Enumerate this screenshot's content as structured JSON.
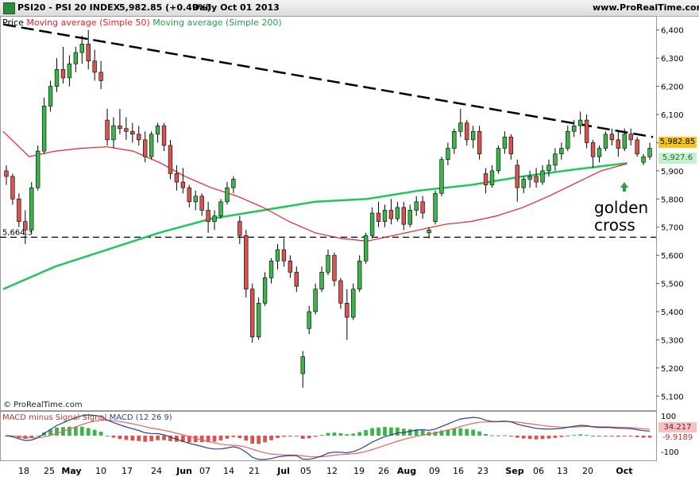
{
  "header": {
    "symbol": "PSI20 - PSI 20 INDEX",
    "last": "5,982.85 (+0.49%)",
    "period": "Daily  Oct 01 2013",
    "site": "www.ProRealTime.com"
  },
  "legend": {
    "price": "Price",
    "ma50": "Moving average (Simple 50)",
    "ma200": "Moving average (Simple 200)"
  },
  "credit": "© ProRealTime.com",
  "annotation": {
    "line1": "golden",
    "line2": "cross"
  },
  "price_tags": {
    "last": "5,982.85",
    "ma200": "5,927.6",
    "support": "5,664.3"
  },
  "macd_legend": {
    "a": "MACD minus Signal",
    "b": "Signal",
    "c": "MACD (12 26 9)"
  },
  "macd_tags": {
    "macd": "34.217",
    "hist": "-9.9189"
  },
  "colors": {
    "up": "#3bb54a",
    "down": "#d9534f",
    "ma50": "#e8232a",
    "ma200": "#22c55e",
    "trend": "#000000",
    "tag_last": "#f5c518",
    "tag_ma200": "#c6f0cf"
  },
  "chart_data": {
    "type": "candlestick",
    "y_ticks": [
      "6,400",
      "6,300",
      "6,200",
      "6,100",
      "6,000",
      "5,900",
      "5,800",
      "5,700",
      "5,600",
      "5,500",
      "5,400",
      "5,300",
      "5,200",
      "5,100"
    ],
    "ylim": [
      5050,
      6450
    ],
    "x_labels": [
      "18",
      "25",
      "May",
      "10",
      "17",
      "24",
      "Jun",
      "07",
      "14",
      "21",
      "Jul",
      "05",
      "12",
      "19",
      "26",
      "Aug",
      "09",
      "16",
      "23",
      "Sep",
      "06",
      "13",
      "20",
      "Oct"
    ],
    "x_label_dates": [
      "2013-04-18",
      "2013-04-25",
      "2013-05-02",
      "2013-05-10",
      "2013-05-17",
      "2013-05-24",
      "2013-05-31",
      "2013-06-07",
      "2013-06-14",
      "2013-06-21",
      "2013-06-28",
      "2013-07-05",
      "2013-07-12",
      "2013-07-19",
      "2013-07-26",
      "2013-08-02",
      "2013-08-09",
      "2013-08-16",
      "2013-08-23",
      "2013-08-30",
      "2013-09-06",
      "2013-09-13",
      "2013-09-20",
      "2013-10-01"
    ],
    "candles": [
      [
        5900,
        5920,
        5850,
        5880
      ],
      [
        5880,
        5890,
        5780,
        5800
      ],
      [
        5800,
        5820,
        5700,
        5720
      ],
      [
        5720,
        5760,
        5640,
        5690
      ],
      [
        5690,
        5860,
        5680,
        5840
      ],
      [
        5840,
        5990,
        5830,
        5970
      ],
      [
        5970,
        6160,
        5960,
        6130
      ],
      [
        6130,
        6220,
        6110,
        6200
      ],
      [
        6200,
        6300,
        6180,
        6260
      ],
      [
        6260,
        6340,
        6210,
        6230
      ],
      [
        6230,
        6310,
        6200,
        6280
      ],
      [
        6280,
        6340,
        6250,
        6320
      ],
      [
        6320,
        6380,
        6280,
        6350
      ],
      [
        6350,
        6400,
        6260,
        6290
      ],
      [
        6290,
        6330,
        6220,
        6250
      ],
      [
        6250,
        6290,
        6190,
        6220
      ],
      [
        6080,
        6120,
        5990,
        6010
      ],
      [
        6010,
        6090,
        5980,
        6060
      ],
      [
        6060,
        6120,
        6030,
        6050
      ],
      [
        6050,
        6090,
        6010,
        6040
      ],
      [
        6040,
        6070,
        6000,
        6030
      ],
      [
        6030,
        6060,
        5990,
        6010
      ],
      [
        6010,
        6040,
        5930,
        5950
      ],
      [
        5950,
        6040,
        5940,
        6030
      ],
      [
        6030,
        6070,
        6000,
        6060
      ],
      [
        6060,
        6070,
        5970,
        5990
      ],
      [
        5990,
        6010,
        5870,
        5890
      ],
      [
        5890,
        5920,
        5830,
        5860
      ],
      [
        5860,
        5910,
        5820,
        5840
      ],
      [
        5840,
        5850,
        5770,
        5790
      ],
      [
        5790,
        5830,
        5760,
        5810
      ],
      [
        5810,
        5820,
        5740,
        5760
      ],
      [
        5760,
        5790,
        5680,
        5720
      ],
      [
        5720,
        5760,
        5690,
        5740
      ],
      [
        5740,
        5800,
        5730,
        5790
      ],
      [
        5790,
        5860,
        5780,
        5840
      ],
      [
        5840,
        5880,
        5820,
        5870
      ],
      [
        5720,
        5740,
        5640,
        5670
      ],
      [
        5670,
        5690,
        5450,
        5480
      ],
      [
        5480,
        5500,
        5290,
        5310
      ],
      [
        5310,
        5450,
        5300,
        5430
      ],
      [
        5430,
        5540,
        5420,
        5520
      ],
      [
        5520,
        5590,
        5500,
        5580
      ],
      [
        5580,
        5640,
        5550,
        5620
      ],
      [
        5620,
        5660,
        5560,
        5580
      ],
      [
        5580,
        5600,
        5520,
        5540
      ],
      [
        5540,
        5560,
        5470,
        5490
      ],
      [
        5180,
        5260,
        5130,
        5240
      ],
      [
        5340,
        5420,
        5320,
        5400
      ],
      [
        5400,
        5500,
        5390,
        5480
      ],
      [
        5480,
        5560,
        5470,
        5540
      ],
      [
        5540,
        5620,
        5530,
        5600
      ],
      [
        5600,
        5610,
        5490,
        5510
      ],
      [
        5510,
        5520,
        5410,
        5430
      ],
      [
        5430,
        5480,
        5300,
        5380
      ],
      [
        5380,
        5500,
        5370,
        5480
      ],
      [
        5480,
        5600,
        5470,
        5580
      ],
      [
        5580,
        5680,
        5570,
        5670
      ],
      [
        5670,
        5770,
        5660,
        5750
      ],
      [
        5750,
        5790,
        5700,
        5720
      ],
      [
        5720,
        5780,
        5700,
        5760
      ],
      [
        5760,
        5800,
        5710,
        5730
      ],
      [
        5730,
        5790,
        5720,
        5770
      ],
      [
        5770,
        5790,
        5690,
        5710
      ],
      [
        5710,
        5780,
        5700,
        5760
      ],
      [
        5760,
        5810,
        5740,
        5790
      ],
      [
        5790,
        5810,
        5730,
        5750
      ],
      [
        5680,
        5700,
        5660,
        5690
      ],
      [
        5720,
        5830,
        5710,
        5820
      ],
      [
        5820,
        5950,
        5810,
        5940
      ],
      [
        5940,
        6000,
        5920,
        5980
      ],
      [
        5980,
        6050,
        5960,
        6040
      ],
      [
        6040,
        6120,
        6020,
        6070
      ],
      [
        6070,
        6080,
        5990,
        6010
      ],
      [
        6010,
        6060,
        5980,
        6040
      ],
      [
        6040,
        6060,
        5940,
        5960
      ],
      [
        5890,
        5910,
        5820,
        5850
      ],
      [
        5850,
        5920,
        5840,
        5900
      ],
      [
        5900,
        5990,
        5890,
        5980
      ],
      [
        5980,
        6040,
        5960,
        6020
      ],
      [
        6020,
        6030,
        5940,
        5960
      ],
      [
        5920,
        5940,
        5790,
        5840
      ],
      [
        5840,
        5880,
        5820,
        5870
      ],
      [
        5870,
        5900,
        5840,
        5880
      ],
      [
        5880,
        5910,
        5840,
        5860
      ],
      [
        5860,
        5920,
        5850,
        5900
      ],
      [
        5900,
        5940,
        5880,
        5920
      ],
      [
        5920,
        5980,
        5900,
        5960
      ],
      [
        5960,
        6000,
        5940,
        5980
      ],
      [
        5980,
        6060,
        5970,
        6040
      ],
      [
        6040,
        6080,
        6020,
        6060
      ],
      [
        6060,
        6110,
        6030,
        6080
      ],
      [
        6080,
        6100,
        5980,
        6000
      ],
      [
        6000,
        6010,
        5910,
        5950
      ],
      [
        5950,
        5990,
        5930,
        5980
      ],
      [
        5980,
        6040,
        5970,
        6030
      ],
      [
        6030,
        6050,
        5990,
        6010
      ],
      [
        6010,
        6040,
        5950,
        5980
      ],
      [
        5980,
        6050,
        5970,
        6030
      ],
      [
        6030,
        6050,
        5990,
        6010
      ],
      [
        6010,
        6020,
        5950,
        5960
      ],
      [
        5930,
        5960,
        5920,
        5950
      ],
      [
        5950,
        6000,
        5940,
        5980
      ]
    ],
    "ma50": [
      [
        0,
        6040
      ],
      [
        10,
        5950
      ],
      [
        20,
        5970
      ],
      [
        30,
        5980
      ],
      [
        40,
        5985
      ],
      [
        50,
        5970
      ],
      [
        60,
        5930
      ],
      [
        70,
        5880
      ],
      [
        80,
        5840
      ],
      [
        90,
        5810
      ],
      [
        100,
        5770
      ],
      [
        110,
        5720
      ],
      [
        120,
        5680
      ],
      [
        130,
        5660
      ],
      [
        140,
        5650
      ],
      [
        150,
        5670
      ],
      [
        160,
        5690
      ],
      [
        170,
        5710
      ],
      [
        180,
        5720
      ],
      [
        190,
        5740
      ],
      [
        200,
        5770
      ],
      [
        210,
        5810
      ],
      [
        220,
        5855
      ],
      [
        230,
        5900
      ],
      [
        240,
        5925
      ]
    ],
    "ma200": [
      [
        0,
        5480
      ],
      [
        20,
        5560
      ],
      [
        40,
        5620
      ],
      [
        60,
        5680
      ],
      [
        80,
        5730
      ],
      [
        100,
        5760
      ],
      [
        120,
        5790
      ],
      [
        140,
        5800
      ],
      [
        160,
        5830
      ],
      [
        180,
        5850
      ],
      [
        200,
        5880
      ],
      [
        220,
        5905
      ],
      [
        240,
        5927
      ]
    ],
    "trendline": [
      [
        0,
        6420
      ],
      [
        250,
        6020
      ]
    ],
    "support_level": 5664.3
  }
}
